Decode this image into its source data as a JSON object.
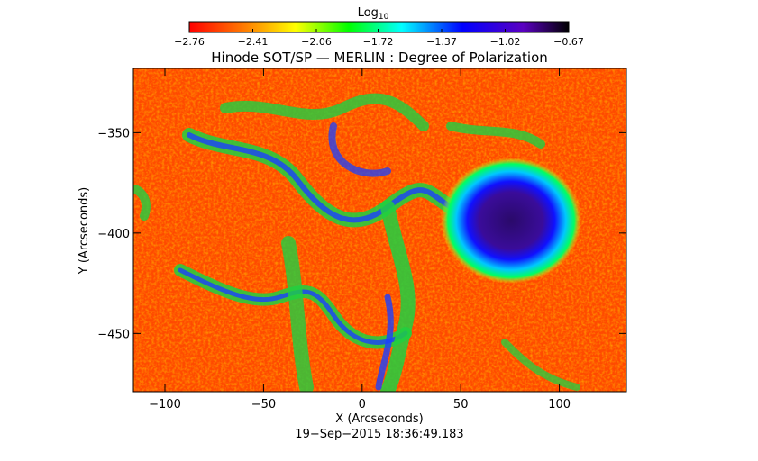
{
  "chart_data": {
    "type": "heatmap",
    "title": "Hinode SOT/SP — MERLIN : Degree of Polarization",
    "date_label": "19−Sep−2015 18:36:49.183",
    "xlabel": "X (Arcseconds)",
    "ylabel": "Y (Arcseconds)",
    "xlim": [
      -116,
      134
    ],
    "ylim": [
      -479,
      -318
    ],
    "x_ticks": [
      -100,
      -50,
      0,
      50,
      100
    ],
    "x_tick_labels": [
      "−100",
      "−50",
      "0",
      "50",
      "100"
    ],
    "y_ticks": [
      -350,
      -400,
      -450
    ],
    "y_tick_labels": [
      "−350",
      "−400",
      "−450"
    ],
    "colorbar": {
      "label_base": "Log",
      "label_sub": "10",
      "range": [
        -2.76,
        -0.67
      ],
      "ticks": [
        -2.76,
        -2.41,
        -2.06,
        -1.72,
        -1.37,
        -1.02,
        -0.67
      ],
      "tick_labels": [
        "−2.76",
        "−2.41",
        "−2.06",
        "−1.72",
        "−1.37",
        "−1.02",
        "−0.67"
      ],
      "colors": [
        "#ff0000",
        "#ff8000",
        "#ffff00",
        "#00ff00",
        "#00ffff",
        "#0000ff",
        "#7f00ff",
        "#000000"
      ]
    },
    "features": [
      {
        "name": "Sunspot",
        "x": 77,
        "y": -393,
        "value": -0.8
      },
      {
        "name": "Penumbra",
        "x": 77,
        "y": -393,
        "value": -1.1
      }
    ]
  }
}
